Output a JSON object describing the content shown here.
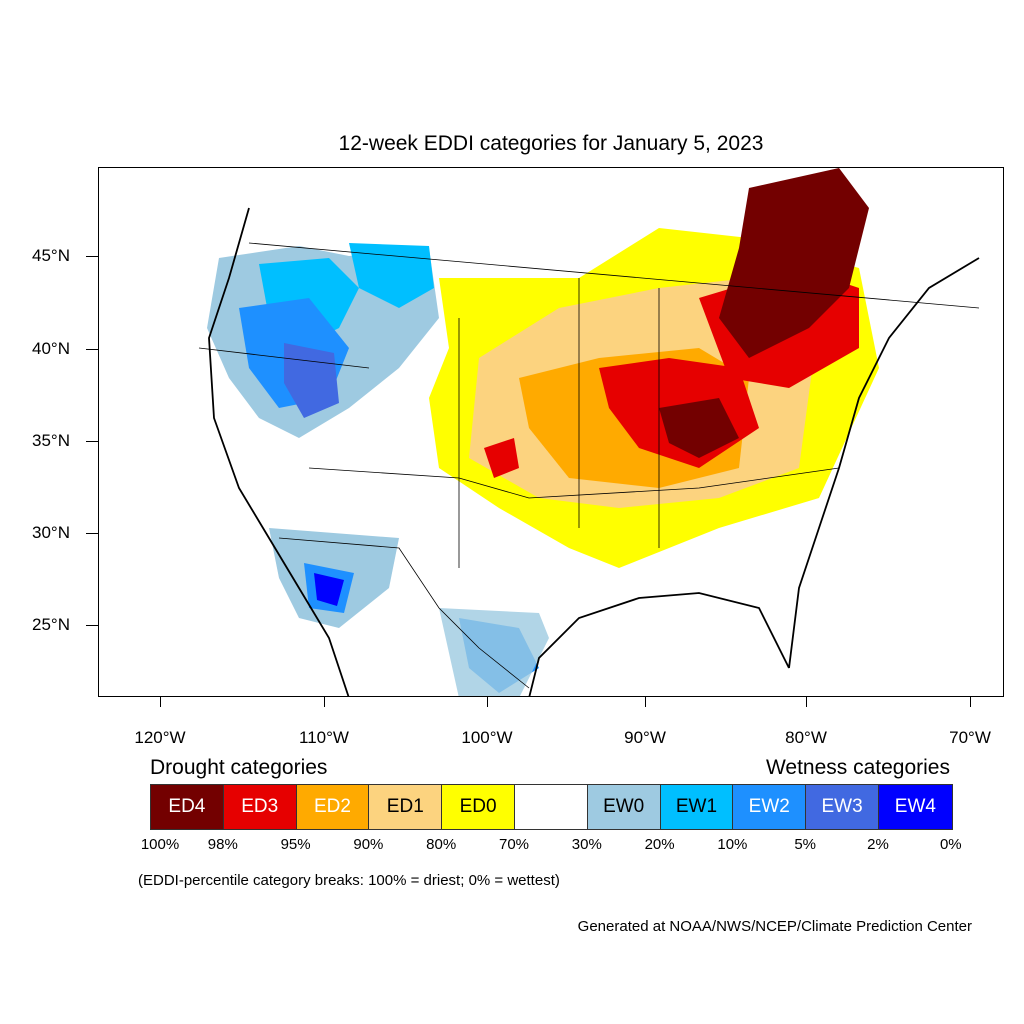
{
  "title": "12-week EDDI categories for January 5, 2023",
  "map": {
    "lat_labels": [
      "45°N",
      "40°N",
      "35°N",
      "30°N",
      "25°N"
    ],
    "lon_labels": [
      "120°W",
      "110°W",
      "100°W",
      "90°W",
      "80°W",
      "70°W"
    ]
  },
  "legend": {
    "drought_heading": "Drought categories",
    "wetness_heading": "Wetness categories",
    "categories": [
      {
        "label": "ED4",
        "color": "#730000",
        "text_color": "#ffffff"
      },
      {
        "label": "ED3",
        "color": "#e60000",
        "text_color": "#ffffff"
      },
      {
        "label": "ED2",
        "color": "#ffaa00",
        "text_color": "#ffffff"
      },
      {
        "label": "ED1",
        "color": "#fcd37f",
        "text_color": "#000000"
      },
      {
        "label": "ED0",
        "color": "#ffff00",
        "text_color": "#000000"
      },
      {
        "label": "",
        "color": "#ffffff",
        "text_color": "#000000"
      },
      {
        "label": "EW0",
        "color": "#9ecae1",
        "text_color": "#000000"
      },
      {
        "label": "EW1",
        "color": "#00bfff",
        "text_color": "#000000"
      },
      {
        "label": "EW2",
        "color": "#1e90ff",
        "text_color": "#ffffff"
      },
      {
        "label": "EW3",
        "color": "#4169e1",
        "text_color": "#ffffff"
      },
      {
        "label": "EW4",
        "color": "#0000ff",
        "text_color": "#ffffff"
      }
    ],
    "breaks": [
      "100%",
      "98%",
      "95%",
      "90%",
      "80%",
      "70%",
      "30%",
      "20%",
      "10%",
      "5%",
      "2%",
      "0%"
    ]
  },
  "note": "(EDDI-percentile category breaks: 100% = driest; 0% = wettest)",
  "credit": "Generated at NOAA/NWS/NCEP/Climate Prediction Center"
}
